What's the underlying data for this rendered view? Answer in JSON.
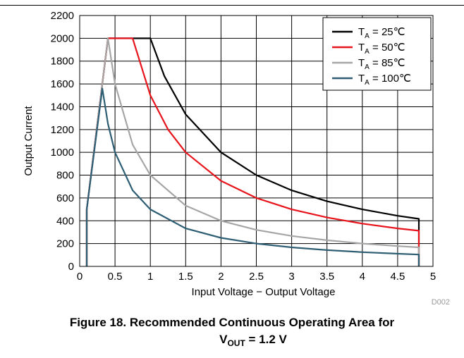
{
  "chart_data": {
    "type": "line",
    "id_label": "D002",
    "xlabel": "Input Voltage − Output Voltage",
    "ylabel": "Output Current",
    "xlim": [
      0,
      5
    ],
    "ylim": [
      0,
      2200
    ],
    "xticks": [
      0,
      0.5,
      1,
      1.5,
      2,
      2.5,
      3,
      3.5,
      4,
      4.5,
      5
    ],
    "yticks": [
      0,
      200,
      400,
      600,
      800,
      1000,
      1200,
      1400,
      1600,
      1800,
      2000,
      2200
    ],
    "grid": true,
    "legend_position": "top-right",
    "series": [
      {
        "name": "T",
        "name_sub": "A",
        "name_rest": " = 25℃",
        "color": "#000000",
        "x": [
          0.1,
          0.1,
          0.4,
          1.0,
          1.2,
          1.5,
          2.0,
          2.5,
          3.0,
          3.5,
          4.0,
          4.5,
          4.8,
          4.8
        ],
        "y": [
          0,
          500,
          2000,
          2000,
          1667,
          1333,
          1000,
          800,
          667,
          571,
          500,
          444,
          417,
          0
        ]
      },
      {
        "name": "T",
        "name_sub": "A",
        "name_rest": " = 50℃",
        "color": "#e8141b",
        "x": [
          0.1,
          0.1,
          0.4,
          0.75,
          1.0,
          1.25,
          1.5,
          2.0,
          2.5,
          3.0,
          3.5,
          4.0,
          4.5,
          4.8,
          4.8
        ],
        "y": [
          0,
          500,
          2000,
          2000,
          1500,
          1200,
          1000,
          750,
          600,
          500,
          429,
          375,
          333,
          313,
          0
        ]
      },
      {
        "name": "T",
        "name_sub": "A",
        "name_rest": " = 85℃",
        "color": "#a6a6a6",
        "x": [
          0.1,
          0.1,
          0.4,
          0.5,
          0.75,
          1.0,
          1.5,
          2.0,
          2.5,
          3.0,
          3.5,
          4.0,
          4.5,
          4.8,
          4.8
        ],
        "y": [
          0,
          500,
          2000,
          1600,
          1067,
          800,
          533,
          400,
          320,
          267,
          229,
          200,
          178,
          167,
          0
        ]
      },
      {
        "name": "T",
        "name_sub": "A",
        "name_rest": " = 100℃",
        "color": "#2e5e74",
        "x": [
          0.1,
          0.1,
          0.32,
          0.4,
          0.5,
          0.75,
          1.0,
          1.5,
          2.0,
          2.5,
          3.0,
          3.5,
          4.0,
          4.5,
          4.8,
          4.8
        ],
        "y": [
          0,
          500,
          1560,
          1250,
          1000,
          667,
          500,
          333,
          250,
          200,
          167,
          143,
          125,
          111,
          104,
          0
        ]
      }
    ]
  },
  "caption": {
    "line1": "Figure 18. Recommended Continuous Operating Area for",
    "line2_prefix": "V",
    "line2_sub": "OUT",
    "line2_rest": " = 1.2 V"
  }
}
